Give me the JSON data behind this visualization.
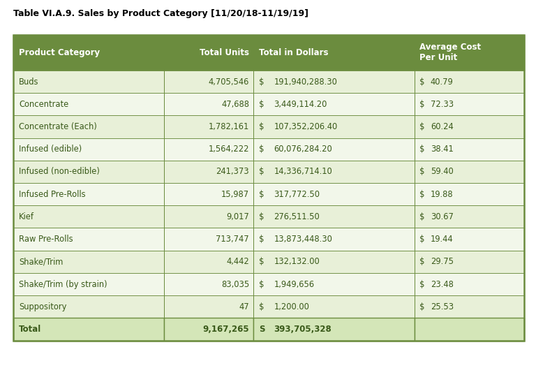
{
  "title": "Table VI.A.9. Sales by Product Category [11/20/18-11/19/19]",
  "headers": [
    "Product Category",
    "Total Units",
    "Total in Dollars",
    "Average Cost\nPer Unit"
  ],
  "col1_data": [
    "Buds",
    "Concentrate",
    "Concentrate (Each)",
    "Infused (edible)",
    "Infused (non-edible)",
    "Infused Pre-Rolls",
    "Kief",
    "Raw Pre-Rolls",
    "Shake/Trim",
    "Shake/Trim (by strain)",
    "Suppository"
  ],
  "col2_data": [
    "4,705,546",
    "47,688",
    "1,782,161",
    "1,564,222",
    "241,373",
    "15,987",
    "9,017",
    "713,747",
    "4,442",
    "83,035",
    "47"
  ],
  "col3_dollar": [
    "$",
    "$",
    "$",
    "$",
    "$",
    "$",
    "$",
    "$",
    "$",
    "$",
    "$"
  ],
  "col3_value": [
    "191,940,288.30",
    "3,449,114.20",
    "107,352,206.40",
    "60,076,284.20",
    "14,336,714.10",
    "317,772.50",
    "276,511.50",
    "13,873,448.30",
    "132,132.00",
    "1,949,656",
    "1,200.00"
  ],
  "col4_dollar": [
    "$",
    "$",
    "$",
    "$",
    "$",
    "$",
    "$",
    "$",
    "$",
    "$",
    "$"
  ],
  "col4_value": [
    "40.79",
    "72.33",
    "60.24",
    "38.41",
    "59.40",
    "19.88",
    "30.67",
    "19.44",
    "29.75",
    "23.48",
    "25.53"
  ],
  "total_col1": "Total",
  "total_col2": "9,167,265",
  "total_col3": "S  393,705,328",
  "header_bg": "#6b8c3e",
  "header_text": "#ffffff",
  "row_bg_light": "#e8f0d8",
  "row_bg_white": "#f2f7ea",
  "total_bg": "#d4e6b8",
  "border_color": "#6b8c3e",
  "text_color": "#3a5a1a",
  "title_color": "#000000",
  "figsize": [
    7.68,
    5.37
  ],
  "dpi": 100
}
